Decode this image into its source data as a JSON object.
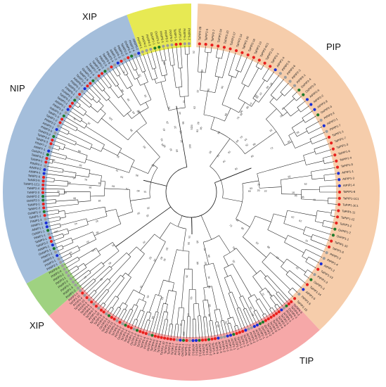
{
  "groups": [
    {
      "key": "pip",
      "label": "PIP",
      "color": "#f6caa6",
      "count": 56
    },
    {
      "key": "tip",
      "label": "TIP",
      "color": "#f6a3a3",
      "count": 75
    },
    {
      "key": "xip_small",
      "label": "XIP",
      "color": "#9ad07a",
      "count": 8
    },
    {
      "key": "nip",
      "label": "NIP",
      "color": "#9fbad9",
      "count": 67
    },
    {
      "key": "xip_top",
      "label": "XIP",
      "color": "#e6e84a",
      "count": 12
    }
  ],
  "species_dot_colors": {
    "wheat": "#e8201d",
    "arabidopsis": "#1a2fd6",
    "rice": "#1e7a2a",
    "poplar": "#9c9c9c",
    "other": "#39d6e0"
  },
  "leaves": {
    "pip": [
      "TaPIP2-28",
      "TaPIP2-5",
      "TaPIP2-7",
      "TaPIP2-24",
      "TaPIP2-20",
      "TaPIP2-17",
      "TaPIP2-14",
      "TaPIP2-10",
      "TaPIP2-16",
      "TaPIP2-13",
      "TaPIP2-4C1",
      "TaPIP2-11",
      "TaPIP2-1",
      "AtPIP2-4",
      "PtPIP2-5",
      "PtPIP2-6",
      "PtPIP2-3",
      "PtPIP2-1",
      "OsPIP2-4",
      "OsPIP2-5",
      "AtPIP2-6",
      "AtPIP2-2",
      "AtPIP2-8",
      "OsPIP2-3",
      "PtPIP2-2",
      "AtPIP2-1",
      "PtPIP1-7",
      "TaPIP1-1",
      "TaPIP1-7",
      "TaPIP1-3",
      "TaPIP1-6",
      "TaPIP1-4",
      "TaPIP1-9",
      "AtPIP1-1",
      "AtPIP1-3",
      "AtPIP1-4",
      "TaPIP1-8",
      "TaPIP1-1C1",
      "TaPIP1-3C1",
      "TaPIP1-11",
      "TaPIP1-12",
      "TaPIP1-2",
      "OsPIP1-2",
      "OsPIP1-1",
      "TaPIP1-10",
      "TaPIP1-5",
      "PtPIP1-2",
      "PtPIP1-4",
      "AtPIP1-2",
      "TaPIP1-13",
      "PtPIP1-3",
      "OsPIP1-3",
      "TaPIP1-14",
      "AtPIP1-5",
      "PtPIP1-5",
      "TaPIP1-15"
    ],
    "tip": [
      "TaTIP4-3",
      "TaTIP4-2",
      "OsTIP4-1",
      "PtTIP4-1",
      "AtTIP4-1",
      "TaTIP2-1",
      "TaTIP2-6",
      "TaTIP2-4",
      "TaTIP2-2",
      "TaTIP2-5",
      "TaTIP2-3",
      "OsTIP2-2",
      "OsTIP2-1",
      "AtTIP2-1",
      "AtTIP2-2",
      "PtTIP2-1",
      "PtTIP2-2",
      "AtTIP2-3",
      "TaTIP1-3",
      "TaTIP1-1",
      "TaTIP1-2",
      "OsTIP1-1",
      "AtTIP1-1",
      "AtTIP1-2",
      "PtTIP1-1",
      "PtTIP1-2",
      "AtTIP1-3",
      "TaTIP1-5",
      "TaTIP1-4",
      "OsTIP1-2",
      "TaTIP3-1",
      "TaTIP3-2",
      "OsTIP3-1",
      "AtTIP3-1",
      "AtTIP3-2",
      "PtTIP3-1",
      "TaTIP5-1",
      "OsTIP5-1",
      "AtTIP5-1",
      "PtTIP5-1",
      "TaTIP2-7",
      "TaTIP2-8",
      "TaTIP2-9",
      "TaTIP2-10",
      "TaTIP4-4",
      "TaTIP4-5",
      "TaTIP4-6",
      "OsTIP4-2",
      "PtTIP4-2",
      "TaTIP1-6",
      "TaTIP1-7",
      "TaTIP1-8",
      "OsTIP1-3",
      "PtTIP1-3",
      "TaTIP3-3",
      "TaTIP3-4",
      "OsTIP3-2",
      "PtTIP3-2",
      "TaTIP5-2",
      "PtTIP5-2",
      "TaTIP2-11",
      "TaTIP2-12",
      "OsTIP2-3",
      "PtTIP2-3",
      "TaTIP1-9",
      "TaTIP1-10",
      "PtTIP1-4",
      "TaTIP4-7",
      "PtTIP4-3",
      "TaTIP3-5",
      "PtTIP3-3",
      "TaTIP2-13",
      "PtTIP2-4",
      "TaTIP1-11",
      "PtXIP1-1"
    ],
    "xip_small": [
      "PtXIP1-2",
      "PtXIP1-3",
      "PtXIP2-1",
      "PtXIP2-2",
      "PtXIP3-1",
      "PtXIP3-2",
      "PtXIP1-4",
      "PtXIP3-3"
    ],
    "nip": [
      "PtNIP2-1",
      "PtNIP3-1",
      "AtNIP5-1",
      "PtNIP3-2",
      "OsNIP3-1",
      "AtNIP6-1",
      "TaNIP3-2",
      "TaNIP3-1",
      "PtNIP1-1",
      "OsNIP1-1",
      "AtNIP1-1",
      "AtNIP1-2",
      "PtNIP1-2",
      "TaNIP1-1",
      "OsNIP1-2",
      "TaNIP2-2",
      "TaNIP2-1",
      "OsNIP2-1",
      "OsNIP2-2",
      "TaNIP2-3",
      "TaNIP2-4",
      "TaNIP2-1C1",
      "TaNIP2-5",
      "TaNIP2-6",
      "AtNIP4-1",
      "AtNIP4-2",
      "PtNIP4-1",
      "TaNIP4-1",
      "TaNIP4-2",
      "OsNIP4-1",
      "AtNIP7-1",
      "PtNIP7-1",
      "TaNIP3-3",
      "TaNIP3-4",
      "OsNIP3-2",
      "PtNIP3-3",
      "AtNIP2-1",
      "PtNIP2-2",
      "TaNIP1-2",
      "TaNIP1-3",
      "OsNIP1-3",
      "PtNIP1-3",
      "AtNIP3-1",
      "TaNIP5-1",
      "TaNIP5-2",
      "OsNIP5-1",
      "PtNIP5-1",
      "TaNIP6-1",
      "PtNIP6-1",
      "AtNIP6-2",
      "TaNIP1-4",
      "TaNIP1-5",
      "OsNIP1-4",
      "PtNIP1-4",
      "TaNIP2-7",
      "TaNIP2-8",
      "OsNIP2-3",
      "PtNIP2-3",
      "TaNIP3-5",
      "PtNIP3-4",
      "AtNIP1-3",
      "TaNIP4-3",
      "PtNIP4-2",
      "TaNIP2-9",
      "OsNIP2-4",
      "PtNIP2-4",
      "AtNIP5-2"
    ],
    "xip_top": [
      "PtXIP4-1",
      "PtXIP4-2",
      "PtXIP4-3",
      "OsXIP1-1",
      "OsXIP1-2",
      "PtXIP5-1",
      "PtXIP5-2",
      "PtXIP5-3",
      "TaXIP1-1",
      "TaXIP1-2",
      "PtXIP6-1",
      "PtXIP6-2"
    ]
  },
  "support_values": [
    "100",
    "99",
    "98",
    "97",
    "96",
    "95",
    "93",
    "91",
    "90",
    "88",
    "86",
    "85",
    "83",
    "80",
    "78",
    "76",
    "75",
    "72",
    "70",
    "68",
    "66",
    "64",
    "62",
    "60",
    "58",
    "55",
    "52",
    "50",
    "48",
    "45",
    "42",
    "40",
    "38",
    "35",
    "32",
    "30",
    "28",
    "25",
    "22",
    "20",
    "18",
    "15"
  ]
}
